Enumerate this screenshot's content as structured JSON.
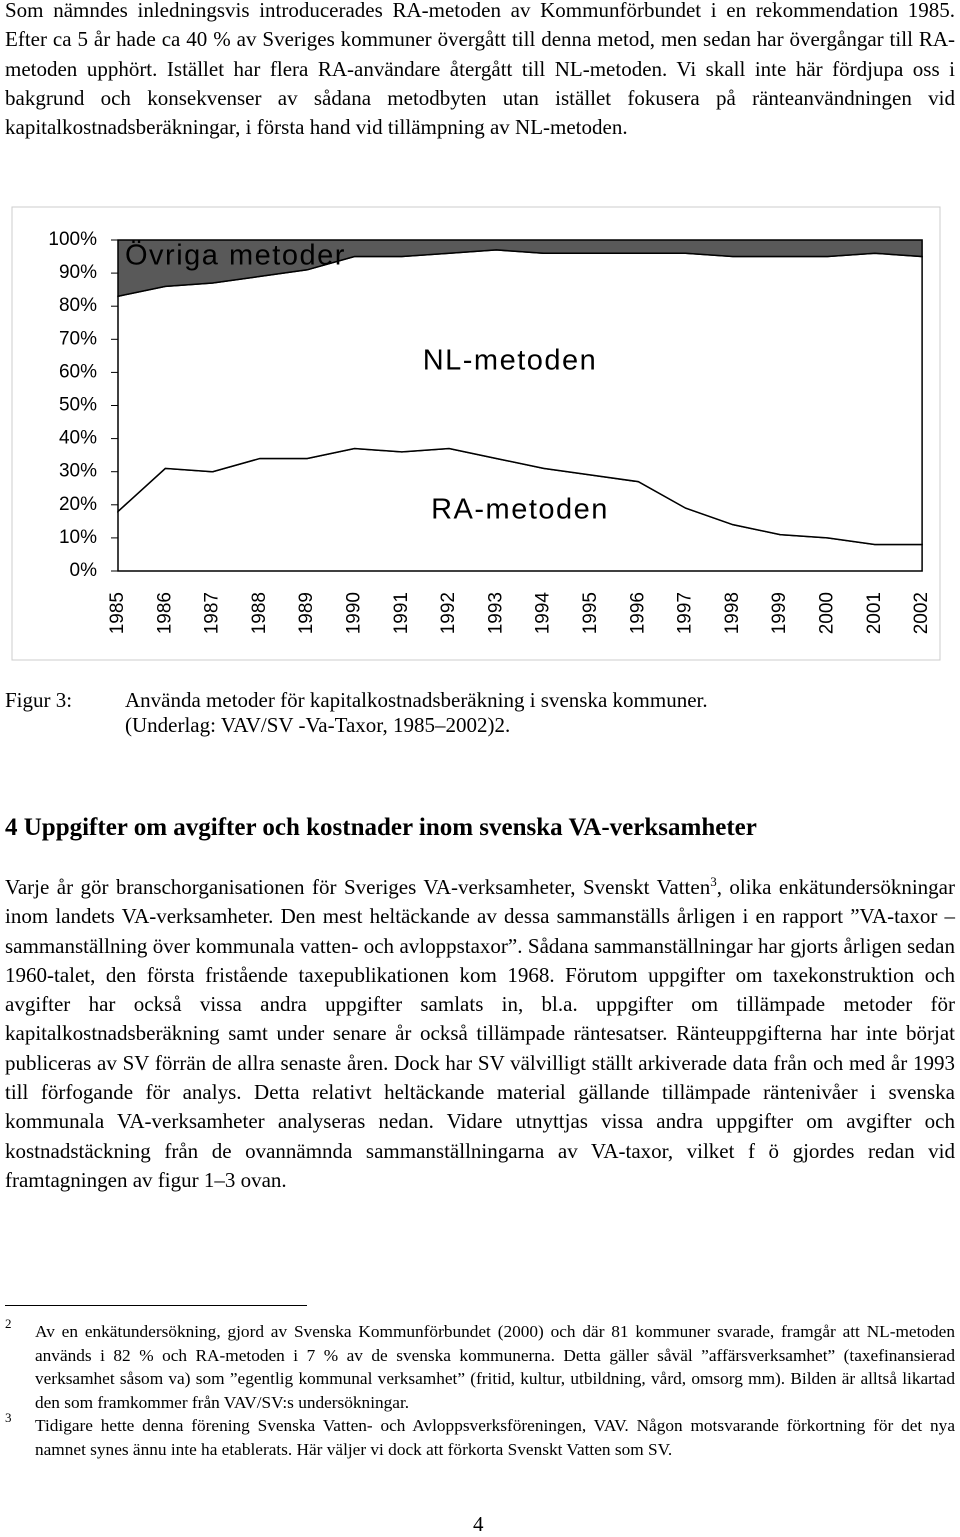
{
  "intro": "Som nämndes inledningsvis introducerades RA-metoden av Kommunförbundet i en rekommendation 1985. Efter ca 5 år hade ca 40 % av Sveriges kommuner övergått till denna metod, men sedan har övergångar till RA-metoden upphört. Istället har flera RA-användare återgått till NL-metoden. Vi skall inte här fördjupa oss i bakgrund och konsekvenser av sådana metodbyten utan istället fokusera på ränteanvändningen vid kapitalkostnadsberäkningar, i första hand vid tillämpning av NL-metoden.",
  "chart_data": {
    "type": "stacked-area",
    "categories": [
      "1985",
      "1986",
      "1987",
      "1988",
      "1989",
      "1990",
      "1991",
      "1992",
      "1993",
      "1994",
      "1995",
      "1996",
      "1997",
      "1998",
      "1999",
      "2000",
      "2001",
      "2002"
    ],
    "series": [
      {
        "name": "RA-metoden",
        "color": "#ffffff",
        "values": [
          18,
          31,
          30,
          34,
          34,
          37,
          36,
          37,
          34,
          31,
          29,
          27,
          19,
          14,
          11,
          10,
          8,
          8
        ]
      },
      {
        "name": "NL-metoden",
        "color": "#ffffff",
        "values": [
          65,
          55,
          57,
          55,
          57,
          58,
          59,
          59,
          63,
          65,
          67,
          69,
          77,
          81,
          84,
          85,
          88,
          87
        ]
      },
      {
        "name": "Övriga metoder",
        "color": "#595959",
        "values": [
          17,
          14,
          13,
          11,
          9,
          5,
          5,
          4,
          3,
          4,
          4,
          4,
          4,
          5,
          5,
          5,
          4,
          5
        ]
      }
    ],
    "ylim": [
      0,
      100
    ],
    "yticks": [
      {
        "value": 0,
        "label": "0%"
      },
      {
        "value": 10,
        "label": "10%"
      },
      {
        "value": 20,
        "label": "20%"
      },
      {
        "value": 30,
        "label": "30%"
      },
      {
        "value": 40,
        "label": "40%"
      },
      {
        "value": 50,
        "label": "50%"
      },
      {
        "value": 60,
        "label": "60%"
      },
      {
        "value": 70,
        "label": "70%"
      },
      {
        "value": 80,
        "label": "80%"
      },
      {
        "value": 90,
        "label": "90%"
      },
      {
        "value": 100,
        "label": "100%"
      }
    ]
  },
  "caption": {
    "label": "Figur 3:",
    "lines": [
      "Använda metoder för kapitalkostnadsberäkning i svenska kommuner.",
      "(Underlag: VAV/SV -Va-Taxor, 1985–2002)2."
    ]
  },
  "heading": "4 Uppgifter om avgifter och kostnader inom svenska VA-verksamheter",
  "paragraph": {
    "before": "Varje år gör branschorganisationen för Sveriges VA-verksamheter, Svenskt Vatten",
    "ref": "3",
    "after": ", olika enkätundersökningar inom landets VA-verksamheter. Den mest heltäckande av dessa sammanställs årligen i en rapport ”VA-taxor – sammanställning över kommunala vatten- och avloppstaxor”. Sådana sammanställningar har gjorts årligen sedan 1960-talet, den första fristående taxepublikationen kom 1968. Förutom uppgifter om taxekonstruktion och avgifter har också vissa andra uppgifter samlats in, bl.a. uppgifter om tillämpade metoder för kapitalkostnadsberäkning samt under senare år också tillämpade räntesatser. Ränteuppgifterna har inte börjat publiceras av SV förrän de allra senaste åren. Dock har SV välvilligt ställt arkiverade data från och med år 1993 till förfogande för analys. Detta relativt heltäckande material gällande tillämpade räntenivåer i svenska kommunala VA-verksamheter analyseras nedan. Vidare utnyttjas vissa andra uppgifter om avgifter och kostnadstäckning från de ovannämnda sammanställningarna av VA-taxor, vilket f ö gjordes redan vid framtagningen av figur 1–3 ovan."
  },
  "footnotes": [
    {
      "number": "2",
      "text": "Av en enkätundersökning, gjord av Svenska Kommunförbundet (2000) och där 81 kommuner svarade, framgår att NL-metoden används i 82 % och RA-metoden i 7 % av de svenska kommunerna. Detta gäller såväl ”affärsverksamhet” (taxefinansierad verksamhet såsom va) som ”egentlig kommunal verksamhet” (fritid, kultur, utbildning, vård, omsorg mm). Bilden är alltså likartad den som framkommer från VAV/SV:s undersökningar."
    },
    {
      "number": "3",
      "text": "Tidigare hette denna förening Svenska Vatten- och Avloppsverksföreningen, VAV. Någon motsvarande förkortning för det nya namnet synes ännu inte ha etablerats. Här väljer vi dock att förkorta Svenskt Vatten som SV."
    }
  ],
  "page_number": "4"
}
